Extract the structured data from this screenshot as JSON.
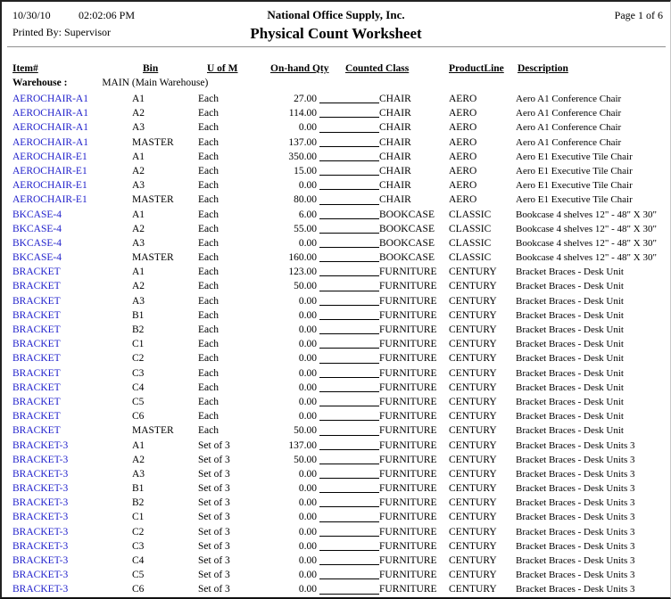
{
  "report": {
    "date": "10/30/10",
    "time": "02:02:06 PM",
    "company": "National Office Supply, Inc.",
    "page_label": "Page 1 of 6",
    "printed_by": "Printed By: Supervisor",
    "title": "Physical Count Worksheet"
  },
  "columns": {
    "item": "Item#",
    "bin": "Bin",
    "uofm": "U of M",
    "onhand_qty": "On-hand Qty",
    "counted_class": "Counted Class",
    "product_line": "ProductLine",
    "description": "Description"
  },
  "warehouse": {
    "label": "Warehouse :",
    "value": "MAIN (Main Warehouse)"
  },
  "colors": {
    "item_link_blue": "#2222CC",
    "rule_gray": "#909090"
  },
  "rows": [
    {
      "item": "AEROCHAIR-A1",
      "bin": "A1",
      "uofm": "Each",
      "qty": "27.00",
      "class": "CHAIR",
      "product_line": "AERO",
      "description": "Aero A1 Conference Chair"
    },
    {
      "item": "AEROCHAIR-A1",
      "bin": "A2",
      "uofm": "Each",
      "qty": "114.00",
      "class": "CHAIR",
      "product_line": "AERO",
      "description": "Aero A1 Conference Chair"
    },
    {
      "item": "AEROCHAIR-A1",
      "bin": "A3",
      "uofm": "Each",
      "qty": "0.00",
      "class": "CHAIR",
      "product_line": "AERO",
      "description": "Aero A1 Conference Chair"
    },
    {
      "item": "AEROCHAIR-A1",
      "bin": "MASTER",
      "uofm": "Each",
      "qty": "137.00",
      "class": "CHAIR",
      "product_line": "AERO",
      "description": "Aero A1 Conference Chair"
    },
    {
      "item": "AEROCHAIR-E1",
      "bin": "A1",
      "uofm": "Each",
      "qty": "350.00",
      "class": "CHAIR",
      "product_line": "AERO",
      "description": "Aero E1 Executive Tile Chair"
    },
    {
      "item": "AEROCHAIR-E1",
      "bin": "A2",
      "uofm": "Each",
      "qty": "15.00",
      "class": "CHAIR",
      "product_line": "AERO",
      "description": "Aero E1 Executive Tile Chair"
    },
    {
      "item": "AEROCHAIR-E1",
      "bin": "A3",
      "uofm": "Each",
      "qty": "0.00",
      "class": "CHAIR",
      "product_line": "AERO",
      "description": "Aero E1 Executive Tile Chair"
    },
    {
      "item": "AEROCHAIR-E1",
      "bin": "MASTER",
      "uofm": "Each",
      "qty": "80.00",
      "class": "CHAIR",
      "product_line": "AERO",
      "description": "Aero E1 Executive Tile Chair"
    },
    {
      "item": "BKCASE-4",
      "bin": "A1",
      "uofm": "Each",
      "qty": "6.00",
      "class": "BOOKCASE",
      "product_line": "CLASSIC",
      "description": "Bookcase 4 shelves 12\" - 48\" X 30\""
    },
    {
      "item": "BKCASE-4",
      "bin": "A2",
      "uofm": "Each",
      "qty": "55.00",
      "class": "BOOKCASE",
      "product_line": "CLASSIC",
      "description": "Bookcase 4 shelves 12\" - 48\" X 30\""
    },
    {
      "item": "BKCASE-4",
      "bin": "A3",
      "uofm": "Each",
      "qty": "0.00",
      "class": "BOOKCASE",
      "product_line": "CLASSIC",
      "description": "Bookcase 4 shelves 12\" - 48\" X 30\""
    },
    {
      "item": "BKCASE-4",
      "bin": "MASTER",
      "uofm": "Each",
      "qty": "160.00",
      "class": "BOOKCASE",
      "product_line": "CLASSIC",
      "description": "Bookcase 4 shelves 12\" - 48\" X 30\""
    },
    {
      "item": "BRACKET",
      "bin": "A1",
      "uofm": "Each",
      "qty": "123.00",
      "class": "FURNITURE",
      "product_line": "CENTURY",
      "description": "Bracket Braces - Desk Unit"
    },
    {
      "item": "BRACKET",
      "bin": "A2",
      "uofm": "Each",
      "qty": "50.00",
      "class": "FURNITURE",
      "product_line": "CENTURY",
      "description": "Bracket Braces - Desk Unit"
    },
    {
      "item": "BRACKET",
      "bin": "A3",
      "uofm": "Each",
      "qty": "0.00",
      "class": "FURNITURE",
      "product_line": "CENTURY",
      "description": "Bracket Braces - Desk Unit"
    },
    {
      "item": "BRACKET",
      "bin": "B1",
      "uofm": "Each",
      "qty": "0.00",
      "class": "FURNITURE",
      "product_line": "CENTURY",
      "description": "Bracket Braces - Desk Unit"
    },
    {
      "item": "BRACKET",
      "bin": "B2",
      "uofm": "Each",
      "qty": "0.00",
      "class": "FURNITURE",
      "product_line": "CENTURY",
      "description": "Bracket Braces - Desk Unit"
    },
    {
      "item": "BRACKET",
      "bin": "C1",
      "uofm": "Each",
      "qty": "0.00",
      "class": "FURNITURE",
      "product_line": "CENTURY",
      "description": "Bracket Braces - Desk Unit"
    },
    {
      "item": "BRACKET",
      "bin": "C2",
      "uofm": "Each",
      "qty": "0.00",
      "class": "FURNITURE",
      "product_line": "CENTURY",
      "description": "Bracket Braces - Desk Unit"
    },
    {
      "item": "BRACKET",
      "bin": "C3",
      "uofm": "Each",
      "qty": "0.00",
      "class": "FURNITURE",
      "product_line": "CENTURY",
      "description": "Bracket Braces - Desk Unit"
    },
    {
      "item": "BRACKET",
      "bin": "C4",
      "uofm": "Each",
      "qty": "0.00",
      "class": "FURNITURE",
      "product_line": "CENTURY",
      "description": "Bracket Braces - Desk Unit"
    },
    {
      "item": "BRACKET",
      "bin": "C5",
      "uofm": "Each",
      "qty": "0.00",
      "class": "FURNITURE",
      "product_line": "CENTURY",
      "description": "Bracket Braces - Desk Unit"
    },
    {
      "item": "BRACKET",
      "bin": "C6",
      "uofm": "Each",
      "qty": "0.00",
      "class": "FURNITURE",
      "product_line": "CENTURY",
      "description": "Bracket Braces - Desk Unit"
    },
    {
      "item": "BRACKET",
      "bin": "MASTER",
      "uofm": "Each",
      "qty": "50.00",
      "class": "FURNITURE",
      "product_line": "CENTURY",
      "description": "Bracket Braces - Desk Unit"
    },
    {
      "item": "BRACKET-3",
      "bin": "A1",
      "uofm": "Set of 3",
      "qty": "137.00",
      "class": "FURNITURE",
      "product_line": "CENTURY",
      "description": "Bracket Braces - Desk Units 3"
    },
    {
      "item": "BRACKET-3",
      "bin": "A2",
      "uofm": "Set of 3",
      "qty": "50.00",
      "class": "FURNITURE",
      "product_line": "CENTURY",
      "description": "Bracket Braces - Desk Units 3"
    },
    {
      "item": "BRACKET-3",
      "bin": "A3",
      "uofm": "Set of 3",
      "qty": "0.00",
      "class": "FURNITURE",
      "product_line": "CENTURY",
      "description": "Bracket Braces - Desk Units 3"
    },
    {
      "item": "BRACKET-3",
      "bin": "B1",
      "uofm": "Set of 3",
      "qty": "0.00",
      "class": "FURNITURE",
      "product_line": "CENTURY",
      "description": "Bracket Braces - Desk Units 3"
    },
    {
      "item": "BRACKET-3",
      "bin": "B2",
      "uofm": "Set of 3",
      "qty": "0.00",
      "class": "FURNITURE",
      "product_line": "CENTURY",
      "description": "Bracket Braces - Desk Units 3"
    },
    {
      "item": "BRACKET-3",
      "bin": "C1",
      "uofm": "Set of 3",
      "qty": "0.00",
      "class": "FURNITURE",
      "product_line": "CENTURY",
      "description": "Bracket Braces - Desk Units 3"
    },
    {
      "item": "BRACKET-3",
      "bin": "C2",
      "uofm": "Set of 3",
      "qty": "0.00",
      "class": "FURNITURE",
      "product_line": "CENTURY",
      "description": "Bracket Braces - Desk Units 3"
    },
    {
      "item": "BRACKET-3",
      "bin": "C3",
      "uofm": "Set of 3",
      "qty": "0.00",
      "class": "FURNITURE",
      "product_line": "CENTURY",
      "description": "Bracket Braces - Desk Units 3"
    },
    {
      "item": "BRACKET-3",
      "bin": "C4",
      "uofm": "Set of 3",
      "qty": "0.00",
      "class": "FURNITURE",
      "product_line": "CENTURY",
      "description": "Bracket Braces - Desk Units 3"
    },
    {
      "item": "BRACKET-3",
      "bin": "C5",
      "uofm": "Set of 3",
      "qty": "0.00",
      "class": "FURNITURE",
      "product_line": "CENTURY",
      "description": "Bracket Braces - Desk Units 3"
    },
    {
      "item": "BRACKET-3",
      "bin": "C6",
      "uofm": "Set of 3",
      "qty": "0.00",
      "class": "FURNITURE",
      "product_line": "CENTURY",
      "description": "Bracket Braces - Desk Units 3"
    }
  ]
}
